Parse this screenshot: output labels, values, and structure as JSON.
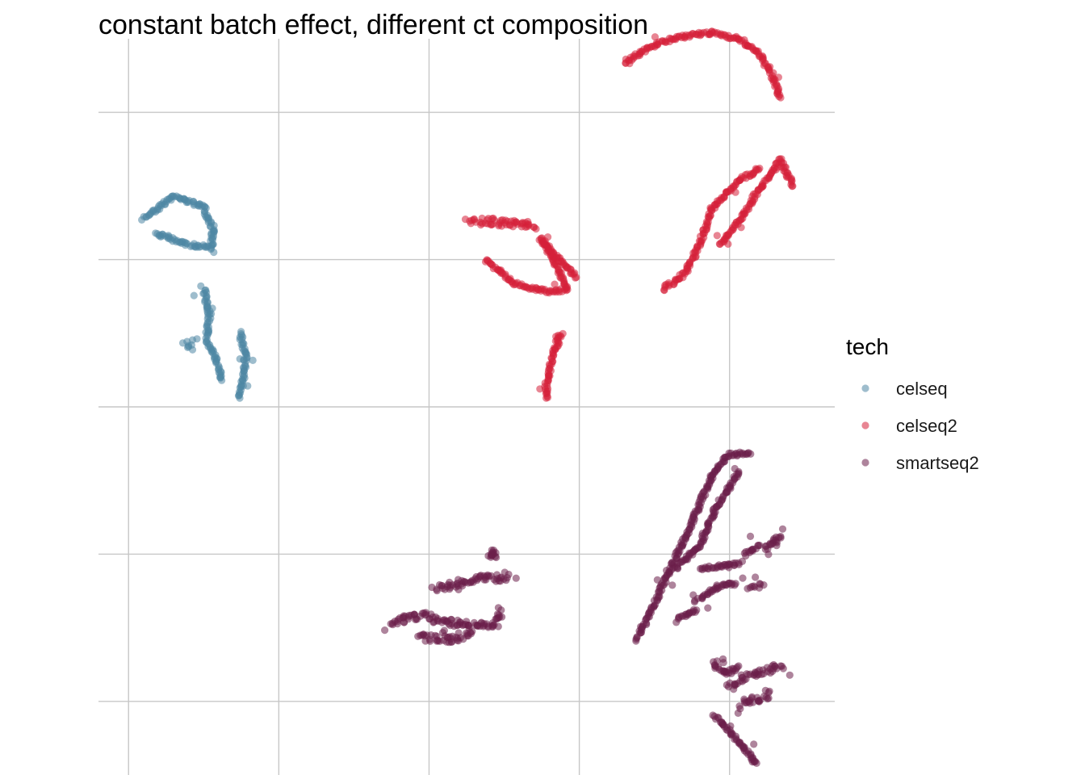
{
  "chart_data": {
    "type": "scatter",
    "title": "constant batch effect, different ct composition",
    "xlabel": "",
    "ylabel": "",
    "xlim": [
      -11,
      13.5
    ],
    "ylim": [
      -10,
      15
    ],
    "x_gridlines": [
      -10,
      -5,
      0,
      5,
      10
    ],
    "y_gridlines": [
      -7.5,
      -2.5,
      2.5,
      7.5,
      12.5
    ],
    "grid": true,
    "tick_labels_shown": false,
    "legend": {
      "title": "tech",
      "position": "right"
    },
    "point_alpha": 0.55,
    "series": [
      {
        "name": "celseq",
        "color": "#4f87a4",
        "clusters": [
          {
            "shape": "loop",
            "points": [
              [
                -9.5,
                8.9
              ],
              [
                -8.5,
                9.65
              ],
              [
                -7.5,
                9.3
              ],
              [
                -7.2,
                8.6
              ],
              [
                -7.25,
                7.9
              ],
              [
                -8.0,
                8.0
              ],
              [
                -9.1,
                8.4
              ]
            ]
          },
          {
            "shape": "branch",
            "points": [
              [
                -7.5,
                6.5
              ],
              [
                -7.3,
                5.6
              ],
              [
                -7.4,
                4.8
              ],
              [
                -7.1,
                4.2
              ],
              [
                -6.9,
                3.4
              ]
            ]
          },
          {
            "shape": "branch",
            "points": [
              [
                -6.3,
                5.0
              ],
              [
                -6.1,
                4.2
              ],
              [
                -6.2,
                3.4
              ],
              [
                -6.3,
                2.8
              ]
            ]
          },
          {
            "shape": "blob",
            "points": [
              [
                -8.1,
                4.7
              ],
              [
                -7.9,
                4.6
              ]
            ]
          }
        ]
      },
      {
        "name": "celseq2",
        "color": "#d6213b",
        "clusters": [
          {
            "shape": "arc",
            "points": [
              [
                6.5,
                14.2
              ],
              [
                7.5,
                14.8
              ],
              [
                8.5,
                15.1
              ],
              [
                9.5,
                15.2
              ],
              [
                10.3,
                15.0
              ],
              [
                11.0,
                14.5
              ],
              [
                11.4,
                13.8
              ],
              [
                11.7,
                13.0
              ]
            ]
          },
          {
            "shape": "branch",
            "points": [
              [
                7.8,
                6.5
              ],
              [
                8.5,
                7.0
              ],
              [
                9.0,
                8.0
              ],
              [
                9.4,
                9.2
              ],
              [
                10.2,
                10.1
              ],
              [
                11.0,
                10.6
              ]
            ]
          },
          {
            "shape": "branch",
            "points": [
              [
                9.7,
                8.0
              ],
              [
                10.3,
                8.8
              ],
              [
                11.0,
                9.9
              ],
              [
                11.7,
                10.9
              ],
              [
                12.1,
                10.0
              ]
            ]
          },
          {
            "shape": "blob",
            "points": [
              [
                1.4,
                8.8
              ],
              [
                2.2,
                8.8
              ],
              [
                3.5,
                8.6
              ]
            ]
          },
          {
            "shape": "arc",
            "points": [
              [
                1.9,
                7.5
              ],
              [
                2.8,
                6.7
              ],
              [
                4.0,
                6.4
              ],
              [
                4.6,
                6.5
              ],
              [
                4.1,
                7.6
              ],
              [
                3.7,
                8.2
              ],
              [
                4.9,
                6.9
              ]
            ]
          },
          {
            "shape": "branch",
            "points": [
              [
                4.4,
                5.0
              ],
              [
                4.1,
                4.2
              ],
              [
                3.9,
                3.2
              ],
              [
                3.9,
                2.8
              ]
            ]
          }
        ]
      },
      {
        "name": "smartseq2",
        "color": "#6b1f4b",
        "clusters": [
          {
            "shape": "branch",
            "points": [
              [
                6.9,
                -5.4
              ],
              [
                7.3,
                -4.6
              ],
              [
                7.9,
                -3.3
              ],
              [
                8.5,
                -2.0
              ],
              [
                9.0,
                -0.8
              ],
              [
                9.5,
                0.3
              ],
              [
                10.0,
                0.9
              ],
              [
                10.7,
                0.9
              ]
            ]
          },
          {
            "shape": "branch",
            "points": [
              [
                8.2,
                -3.0
              ],
              [
                9.0,
                -2.2
              ],
              [
                9.5,
                -1.0
              ],
              [
                10.3,
                0.3
              ]
            ]
          },
          {
            "shape": "branch",
            "points": [
              [
                8.3,
                -4.7
              ],
              [
                8.9,
                -4.4
              ]
            ]
          },
          {
            "shape": "branch",
            "points": [
              [
                9.0,
                -4.0
              ],
              [
                9.7,
                -3.6
              ],
              [
                10.2,
                -3.5
              ]
            ]
          },
          {
            "shape": "branch",
            "points": [
              [
                9.1,
                -3.0
              ],
              [
                9.8,
                -2.9
              ],
              [
                10.3,
                -2.8
              ]
            ]
          },
          {
            "shape": "branch",
            "points": [
              [
                10.5,
                -2.5
              ],
              [
                11.0,
                -2.2
              ]
            ]
          },
          {
            "shape": "branch",
            "points": [
              [
                11.2,
                -2.3
              ],
              [
                11.7,
                -1.9
              ]
            ]
          },
          {
            "shape": "blob",
            "points": [
              [
                10.7,
                -3.6
              ],
              [
                11.0,
                -3.5
              ]
            ]
          },
          {
            "shape": "blob",
            "points": [
              [
                9.5,
                -6.2
              ],
              [
                9.8,
                -6.6
              ],
              [
                10.3,
                -6.3
              ]
            ]
          },
          {
            "shape": "blob",
            "points": [
              [
                10.0,
                -7.0
              ],
              [
                10.5,
                -6.7
              ],
              [
                11.2,
                -6.5
              ],
              [
                11.7,
                -6.3
              ]
            ]
          },
          {
            "shape": "blob",
            "points": [
              [
                10.4,
                -7.6
              ],
              [
                11.0,
                -7.4
              ],
              [
                11.3,
                -7.2
              ]
            ]
          },
          {
            "shape": "branch",
            "points": [
              [
                9.5,
                -8.0
              ],
              [
                10.0,
                -8.5
              ],
              [
                10.5,
                -9.1
              ],
              [
                10.9,
                -9.6
              ]
            ]
          },
          {
            "shape": "blob",
            "points": [
              [
                -1.2,
                -4.8
              ],
              [
                -0.2,
                -4.6
              ],
              [
                1.0,
                -4.9
              ],
              [
                2.2,
                -4.9
              ],
              [
                2.4,
                -4.4
              ]
            ]
          },
          {
            "shape": "blob",
            "points": [
              [
                -0.3,
                -5.3
              ],
              [
                0.6,
                -5.4
              ],
              [
                1.4,
                -5.2
              ]
            ]
          },
          {
            "shape": "blob",
            "points": [
              [
                0.2,
                -3.7
              ],
              [
                1.0,
                -3.5
              ],
              [
                1.7,
                -3.3
              ],
              [
                2.6,
                -3.3
              ]
            ]
          },
          {
            "shape": "blob",
            "points": [
              [
                2.1,
                -2.5
              ]
            ]
          }
        ]
      }
    ]
  }
}
